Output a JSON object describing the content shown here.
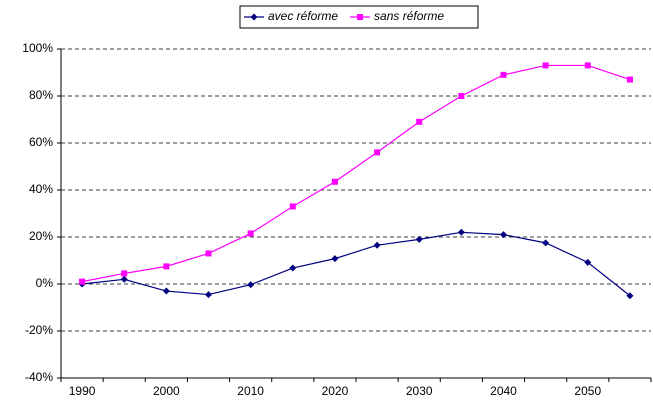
{
  "chart_data": {
    "type": "line",
    "categories": [
      "1990",
      null,
      "2000",
      null,
      "2010",
      null,
      "2020",
      null,
      "2030",
      null,
      "2040",
      null,
      "2050",
      null
    ],
    "series": [
      {
        "name": "avec réforme",
        "color": "#000080",
        "marker": "diamond",
        "values": [
          0,
          2,
          -3,
          -4.5,
          -0.3,
          6.8,
          10.8,
          16.5,
          19,
          22,
          21,
          17.5,
          9.2,
          -5
        ]
      },
      {
        "name": "sans réforme",
        "color": "#ff00ff",
        "marker": "square",
        "values": [
          1,
          4.5,
          7.5,
          13,
          21.5,
          33,
          43.5,
          56,
          69,
          80,
          89,
          93,
          93,
          87
        ]
      }
    ],
    "ylim": [
      -40,
      100
    ],
    "yticks": [
      {
        "value": -40,
        "label": "-40%"
      },
      {
        "value": -20,
        "label": "-20%"
      },
      {
        "value": 0,
        "label": "0%"
      },
      {
        "value": 20,
        "label": "20%"
      },
      {
        "value": 40,
        "label": "40%"
      },
      {
        "value": 60,
        "label": "60%"
      },
      {
        "value": 80,
        "label": "80%"
      },
      {
        "value": 100,
        "label": "100%"
      }
    ],
    "grid": true,
    "legend": "top"
  }
}
